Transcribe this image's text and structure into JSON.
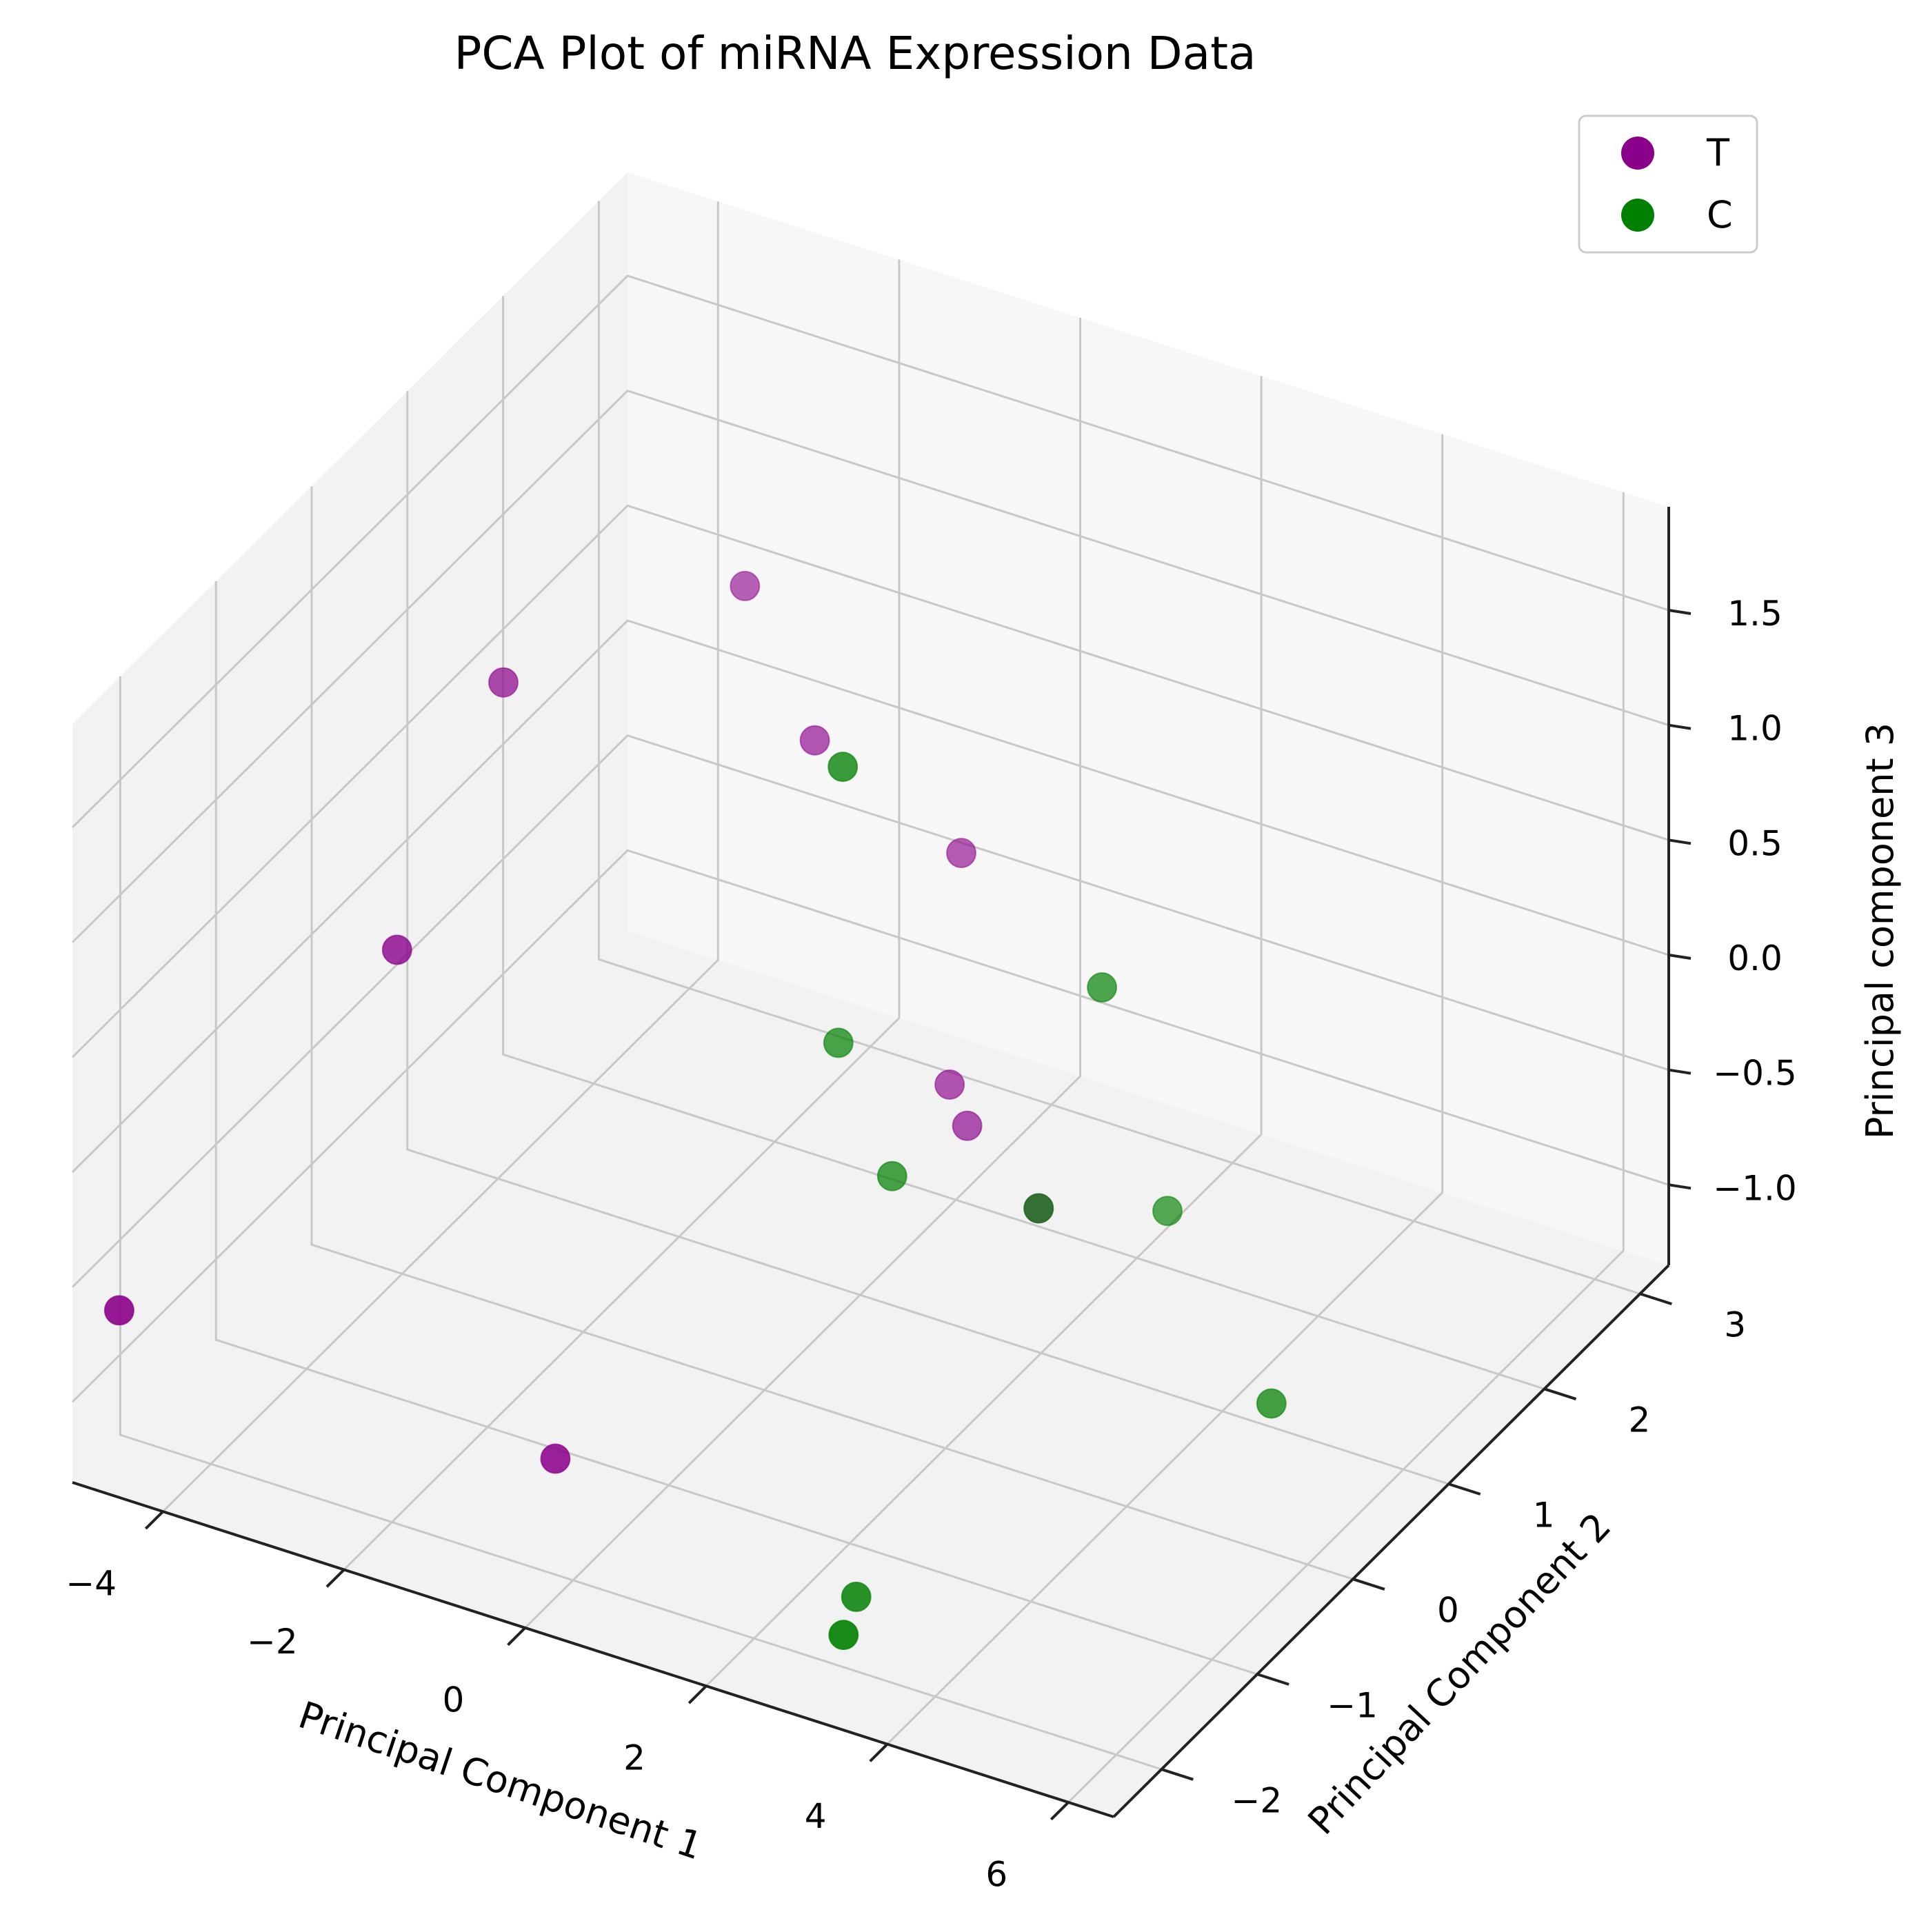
{
  "chart_data": {
    "type": "scatter3d",
    "title": "PCA Plot of miRNA Expression Data",
    "xlabel": "Principal Component 1",
    "ylabel": "Principal Component 2",
    "zlabel": "Principal component 3",
    "xlim": [
      -5,
      6.5
    ],
    "ylim": [
      -2.5,
      3.3
    ],
    "zlim": [
      -1.35,
      1.95
    ],
    "x_ticks": [
      -4,
      -2,
      0,
      2,
      4,
      6
    ],
    "y_ticks": [
      -2,
      -1,
      0,
      1,
      2,
      3
    ],
    "z_ticks": [
      -1.0,
      -0.5,
      0.0,
      0.5,
      1.0,
      1.5
    ],
    "x_tick_labels": [
      "−4",
      "−2",
      "0",
      "2",
      "4",
      "6"
    ],
    "y_tick_labels": [
      "−2",
      "−1",
      "0",
      "1",
      "2",
      "3"
    ],
    "z_tick_labels": [
      "−1.0",
      "−0.5",
      "0.0",
      "0.5",
      "1.0",
      "1.5"
    ],
    "grid": true,
    "legend_position": "top-right",
    "colors": {
      "T": "#8b008b",
      "C": "#008000",
      "pane": "#f2f2f2",
      "pane_light": "#f7f7f7",
      "grid": "#c8c8c8",
      "axis": "#222222"
    },
    "series": [
      {
        "name": "T",
        "points": [
          {
            "x": -4.8,
            "y": -2.2,
            "z": -0.7
          },
          {
            "x": -3.0,
            "y": -1.0,
            "z": 0.6
          },
          {
            "x": -3.2,
            "y": 0.3,
            "z": 1.2
          },
          {
            "x": -1.8,
            "y": 1.5,
            "z": 1.3
          },
          {
            "x": -0.5,
            "y": 1.0,
            "z": 1.0
          },
          {
            "x": -0.3,
            "y": -1.9,
            "z": -0.9
          },
          {
            "x": 1.2,
            "y": 0.8,
            "z": -0.2
          },
          {
            "x": 1.5,
            "y": 0.7,
            "z": -0.3
          },
          {
            "x": 2.5,
            "y": 0.5,
            "z": -0.45
          },
          {
            "x": 0.8,
            "y": 1.3,
            "z": 0.55
          }
        ]
      },
      {
        "name": "C",
        "points": [
          {
            "x": 1.5,
            "y": -0.6,
            "z": 1.8
          },
          {
            "x": 3.2,
            "y": 0.5,
            "z": 0.6
          },
          {
            "x": 3.5,
            "y": 0.9,
            "z": -0.5
          },
          {
            "x": 0.5,
            "y": 0.3,
            "z": 0.1
          },
          {
            "x": 1.2,
            "y": 0.2,
            "z": -0.35
          },
          {
            "x": 2.5,
            "y": 0.5,
            "z": -0.45
          },
          {
            "x": 5.6,
            "y": 0.0,
            "z": -0.7
          },
          {
            "x": 2.6,
            "y": -1.5,
            "z": -1.3
          },
          {
            "x": 3.2,
            "y": -2.2,
            "z": -1.1
          }
        ]
      }
    ]
  }
}
